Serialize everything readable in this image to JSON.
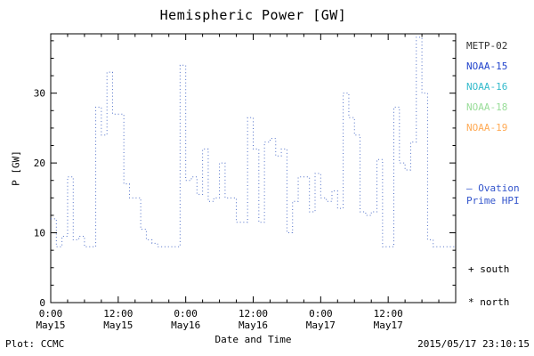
{
  "title": "Hemispheric Power [GW]",
  "footer": {
    "plot_credit": "Plot: CCMC",
    "timestamp": "2015/05/17 23:10:15"
  },
  "legend": {
    "satellites": [
      {
        "label": "METP-02",
        "color": "#333333"
      },
      {
        "label": "NOAA-15",
        "color": "#2244cc"
      },
      {
        "label": "NOAA-16",
        "color": "#33bbcc"
      },
      {
        "label": "NOAA-18",
        "color": "#99dd99"
      },
      {
        "label": "NOAA-19",
        "color": "#ffaa55"
      }
    ],
    "model_label_line1": "– Ovation",
    "model_label_line2": "Prime HPI",
    "model_color": "#3355cc",
    "south_marker": "+ south",
    "north_marker": "* north"
  },
  "chart_data": {
    "type": "line",
    "style": "step-dotted",
    "title": "Hemispheric Power [GW]",
    "xlabel": "Date and Time",
    "ylabel": "P [GW]",
    "ylim": [
      0,
      38.5
    ],
    "xlim_hours": [
      0,
      72
    ],
    "grid": false,
    "legend_position": "right-outside",
    "line_color": "#4f6fc8",
    "y_ticks": [
      0,
      10,
      20,
      30
    ],
    "x_ticks": [
      {
        "hour": 0,
        "time": "0:00",
        "date": "May15"
      },
      {
        "hour": 12,
        "time": "12:00",
        "date": "May15"
      },
      {
        "hour": 24,
        "time": "0:00",
        "date": "May16"
      },
      {
        "hour": 36,
        "time": "12:00",
        "date": "May16"
      },
      {
        "hour": 48,
        "time": "0:00",
        "date": "May17"
      },
      {
        "hour": 60,
        "time": "12:00",
        "date": "May17"
      }
    ],
    "series": [
      {
        "name": "Ovation Prime HPI",
        "x_hours": {
          "start": 0,
          "step": 1,
          "count": 72,
          "unit": "hours since 2015-05-15 00:00"
        },
        "values": [
          12,
          8,
          9.5,
          18,
          9,
          9.5,
          8,
          8,
          28,
          24,
          33,
          27,
          27,
          17,
          15,
          15,
          10.5,
          9,
          8.5,
          8,
          8,
          8,
          8,
          34,
          17.5,
          18,
          15.5,
          22,
          14.5,
          15,
          20,
          15,
          15,
          11.5,
          11.5,
          26.5,
          22,
          11.5,
          23,
          23.5,
          21,
          22,
          10,
          14.5,
          18,
          18,
          13,
          18.5,
          15,
          14.5,
          16,
          13.5,
          30,
          26.5,
          24,
          13,
          12.5,
          13,
          20.5,
          8,
          8,
          28,
          20,
          19,
          23,
          38,
          30,
          9,
          8,
          8,
          8,
          8
        ]
      }
    ]
  }
}
